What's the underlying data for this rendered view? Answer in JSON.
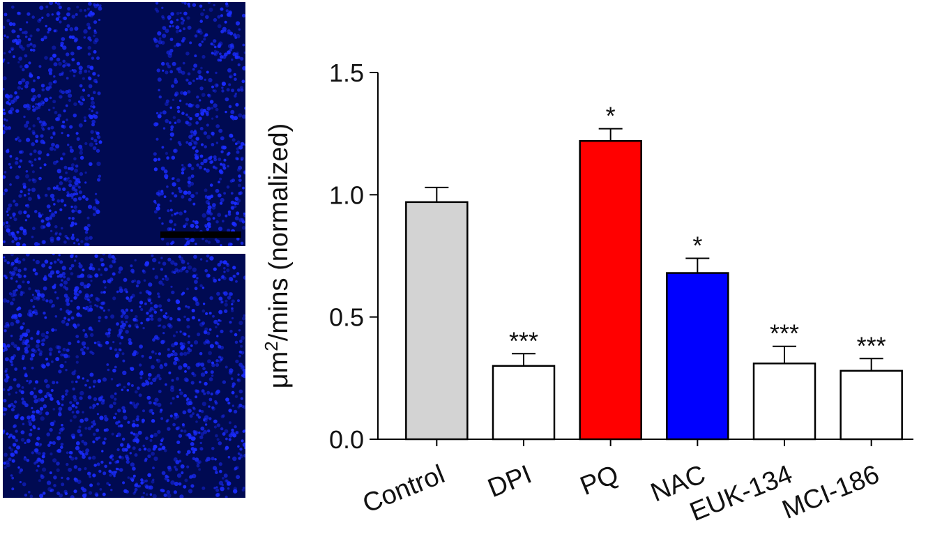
{
  "images": {
    "top": {
      "name": "scratch-wound-fluorescence-initial",
      "has_scale_bar": true
    },
    "bottom": {
      "name": "scratch-wound-fluorescence-closed",
      "has_scale_bar": false
    },
    "fluor_color": "#1a2cff",
    "background_color": "#000a52"
  },
  "chart_data": {
    "type": "bar",
    "title": "",
    "xlabel": "",
    "ylabel_prefix": "μm",
    "ylabel_sup": "2",
    "ylabel_suffix": "/mins (normalized)",
    "ylim": [
      0,
      1.5
    ],
    "yticks": [
      "0.0",
      "0.5",
      "1.0",
      "1.5"
    ],
    "grid": false,
    "categories": [
      "Control",
      "DPI",
      "PQ",
      "NAC",
      "EUK-134",
      "MCI-186"
    ],
    "values": [
      0.97,
      0.3,
      1.22,
      0.68,
      0.31,
      0.28
    ],
    "errors": [
      0.06,
      0.05,
      0.05,
      0.06,
      0.07,
      0.05
    ],
    "significance": [
      "",
      "***",
      "*",
      "*",
      "***",
      "***"
    ],
    "colors": [
      "#d3d3d3",
      "#ffffff",
      "#ff0000",
      "#0000ff",
      "#ffffff",
      "#ffffff"
    ]
  }
}
